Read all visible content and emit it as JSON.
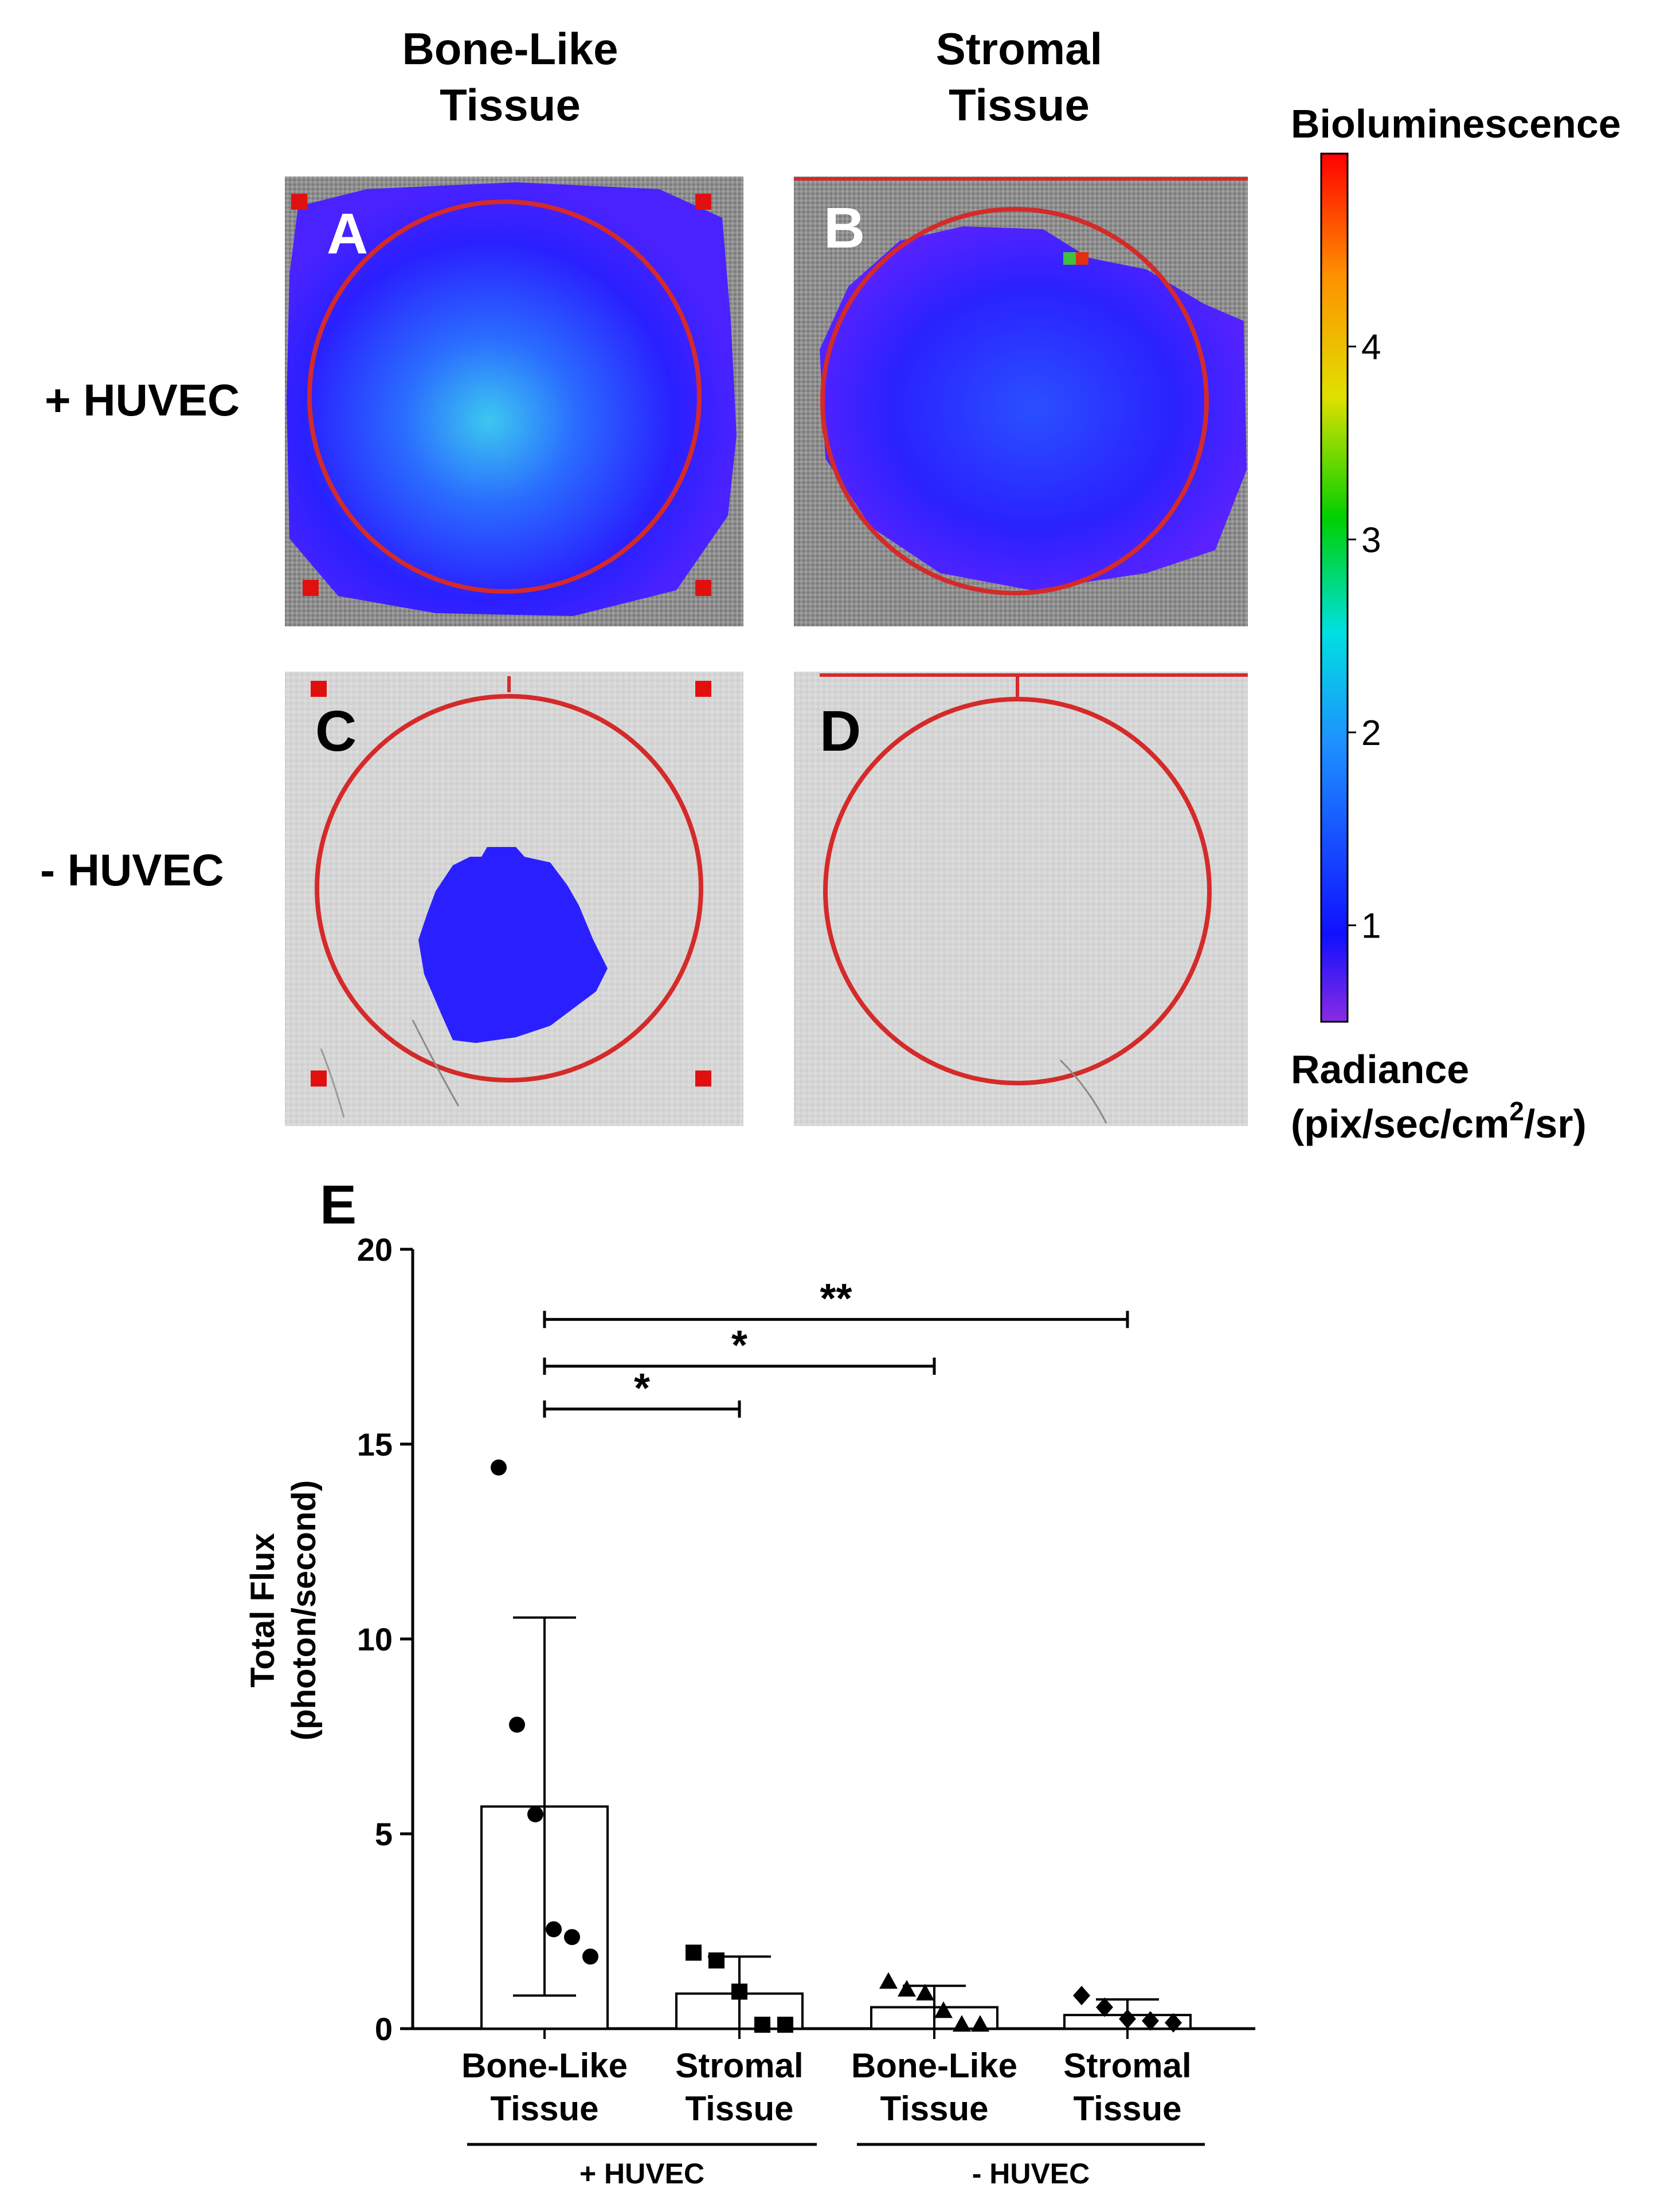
{
  "headers": {
    "col1": [
      "Bone-Like",
      "Tissue"
    ],
    "col2": [
      "Stromal",
      "Tissue"
    ],
    "row1": "+ HUVEC",
    "row2": "- HUVEC"
  },
  "panels": [
    {
      "letter": "A",
      "signal": "strong"
    },
    {
      "letter": "B",
      "signal": "moderate"
    },
    {
      "letter": "C",
      "signal": "weak"
    },
    {
      "letter": "D",
      "signal": "none"
    }
  ],
  "colorbar": {
    "title": "Bioluminescence",
    "label_line1": "Radiance",
    "label_line2_pre": "(pix/sec/cm",
    "label_line2_sup": "2",
    "label_line2_post": "/sr)",
    "ticks": [
      "1",
      "2",
      "3",
      "4"
    ],
    "colors": [
      "#8a2be2",
      "#1010ff",
      "#1e90ff",
      "#00e0e0",
      "#00d000",
      "#e0e000",
      "#ff9000",
      "#ff0000"
    ]
  },
  "colors": {
    "roi_circle": "#d42a2a",
    "roi_marker": "#e01010",
    "signal_blue": "#2a20ff"
  },
  "chart_data": {
    "type": "bar",
    "panel_letter": "E",
    "categories": [
      [
        "Bone-Like",
        "Tissue"
      ],
      [
        "Stromal",
        "Tissue"
      ],
      [
        "Bone-Like",
        "Tissue"
      ],
      [
        "Stromal",
        "Tissue"
      ]
    ],
    "groups": [
      {
        "label": "+ HUVEC",
        "categories": [
          0,
          1
        ]
      },
      {
        "label": "- HUVEC",
        "categories": [
          2,
          3
        ]
      }
    ],
    "means": [
      5.7,
      0.9,
      0.55,
      0.35
    ],
    "sd": [
      4.85,
      0.95,
      0.55,
      0.4
    ],
    "points": [
      [
        14.4,
        7.8,
        5.5,
        2.55,
        2.35,
        1.85
      ],
      [
        1.95,
        1.75,
        0.95,
        0.1,
        0.1
      ],
      [
        1.2,
        1.0,
        0.9,
        0.45,
        0.1,
        0.1
      ],
      [
        0.85,
        0.55,
        0.25,
        0.2,
        0.15
      ]
    ],
    "markers": [
      "circle",
      "square",
      "triangle",
      "diamond"
    ],
    "ylabel_line1": "Total Flux",
    "ylabel_line2": "(photon/second)",
    "yticks": [
      0,
      5,
      10,
      15,
      20
    ],
    "ylim": [
      0,
      20
    ],
    "significance": [
      {
        "from": 0,
        "to": 3,
        "y": 18.2,
        "label": "**"
      },
      {
        "from": 0,
        "to": 2,
        "y": 17.0,
        "label": "*"
      },
      {
        "from": 0,
        "to": 1,
        "y": 15.9,
        "label": "*"
      }
    ]
  }
}
